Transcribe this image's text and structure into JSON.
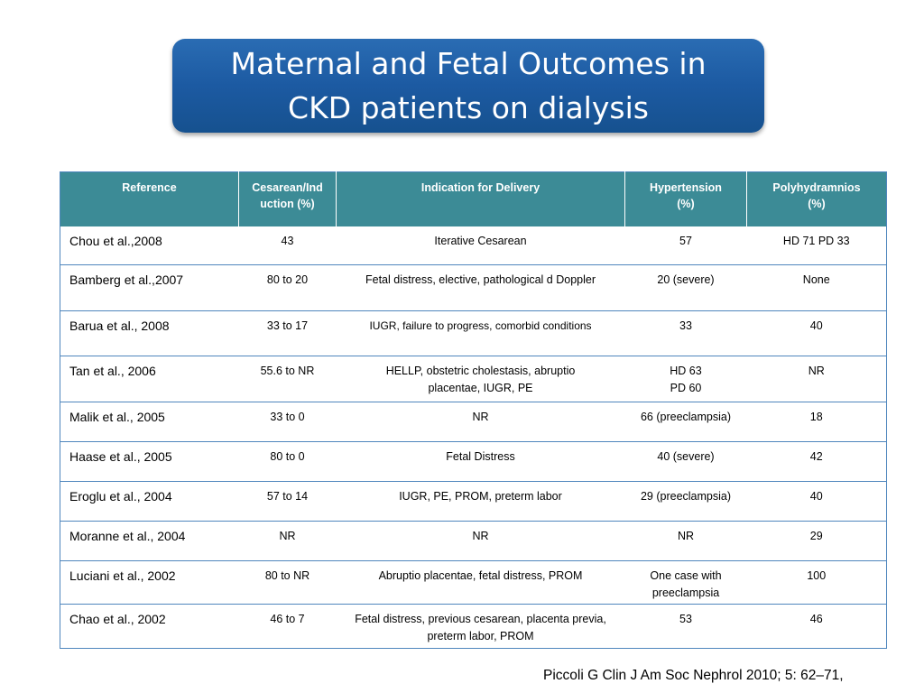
{
  "title": {
    "line1": "Maternal and Fetal Outcomes in",
    "line2": "CKD patients on dialysis"
  },
  "table": {
    "headers": [
      "Reference",
      "Cesarean/Ind uction (%)",
      "Indication for Delivery",
      "Hypertension (%)",
      "Polyhydramnios (%)"
    ],
    "rows": [
      [
        "Chou et al.,2008",
        "43",
        "Iterative Cesarean",
        "57",
        "HD 71 PD 33"
      ],
      [
        "Bamberg et al.,2007",
        "80 to 20",
        "Fetal distress, elective, pathological d Doppler",
        "20 (severe)",
        "None"
      ],
      [
        "Barua et al., 2008",
        "33 to 17",
        "IUGR, failure to progress, comorbid conditions",
        "33",
        "40"
      ],
      [
        "Tan et al., 2006",
        "55.6 to NR",
        "HELLP, obstetric cholestasis, abruptio placentae, IUGR, PE",
        "HD 63 PD 60",
        "NR"
      ],
      [
        "Malik et al., 2005",
        "33 to 0",
        "NR",
        "66 (preeclampsia)",
        "18"
      ],
      [
        "Haase et al., 2005",
        "80 to 0",
        "Fetal Distress",
        "40 (severe)",
        "42"
      ],
      [
        "Eroglu et al., 2004",
        "57 to 14",
        "IUGR, PE, PROM, preterm labor",
        "29 (preeclampsia)",
        "40"
      ],
      [
        "Moranne et al., 2004",
        "NR",
        "NR",
        "NR",
        "29"
      ],
      [
        "Luciani et al., 2002",
        "80 to NR",
        "Abruptio placentae, fetal distress, PROM",
        "One case with preeclampsia",
        "100"
      ],
      [
        "Chao et al., 2002",
        "46 to 7",
        "Fetal distress, previous cesarean, placenta previa, preterm labor, PROM",
        "53",
        "46"
      ]
    ]
  },
  "citation": "Piccoli G Clin J Am Soc Nephrol 2010; 5: 62–71,",
  "colors": {
    "title_bg": "#1c5aa2",
    "header_bg": "#3c8b96",
    "border": "#4f86bd"
  }
}
